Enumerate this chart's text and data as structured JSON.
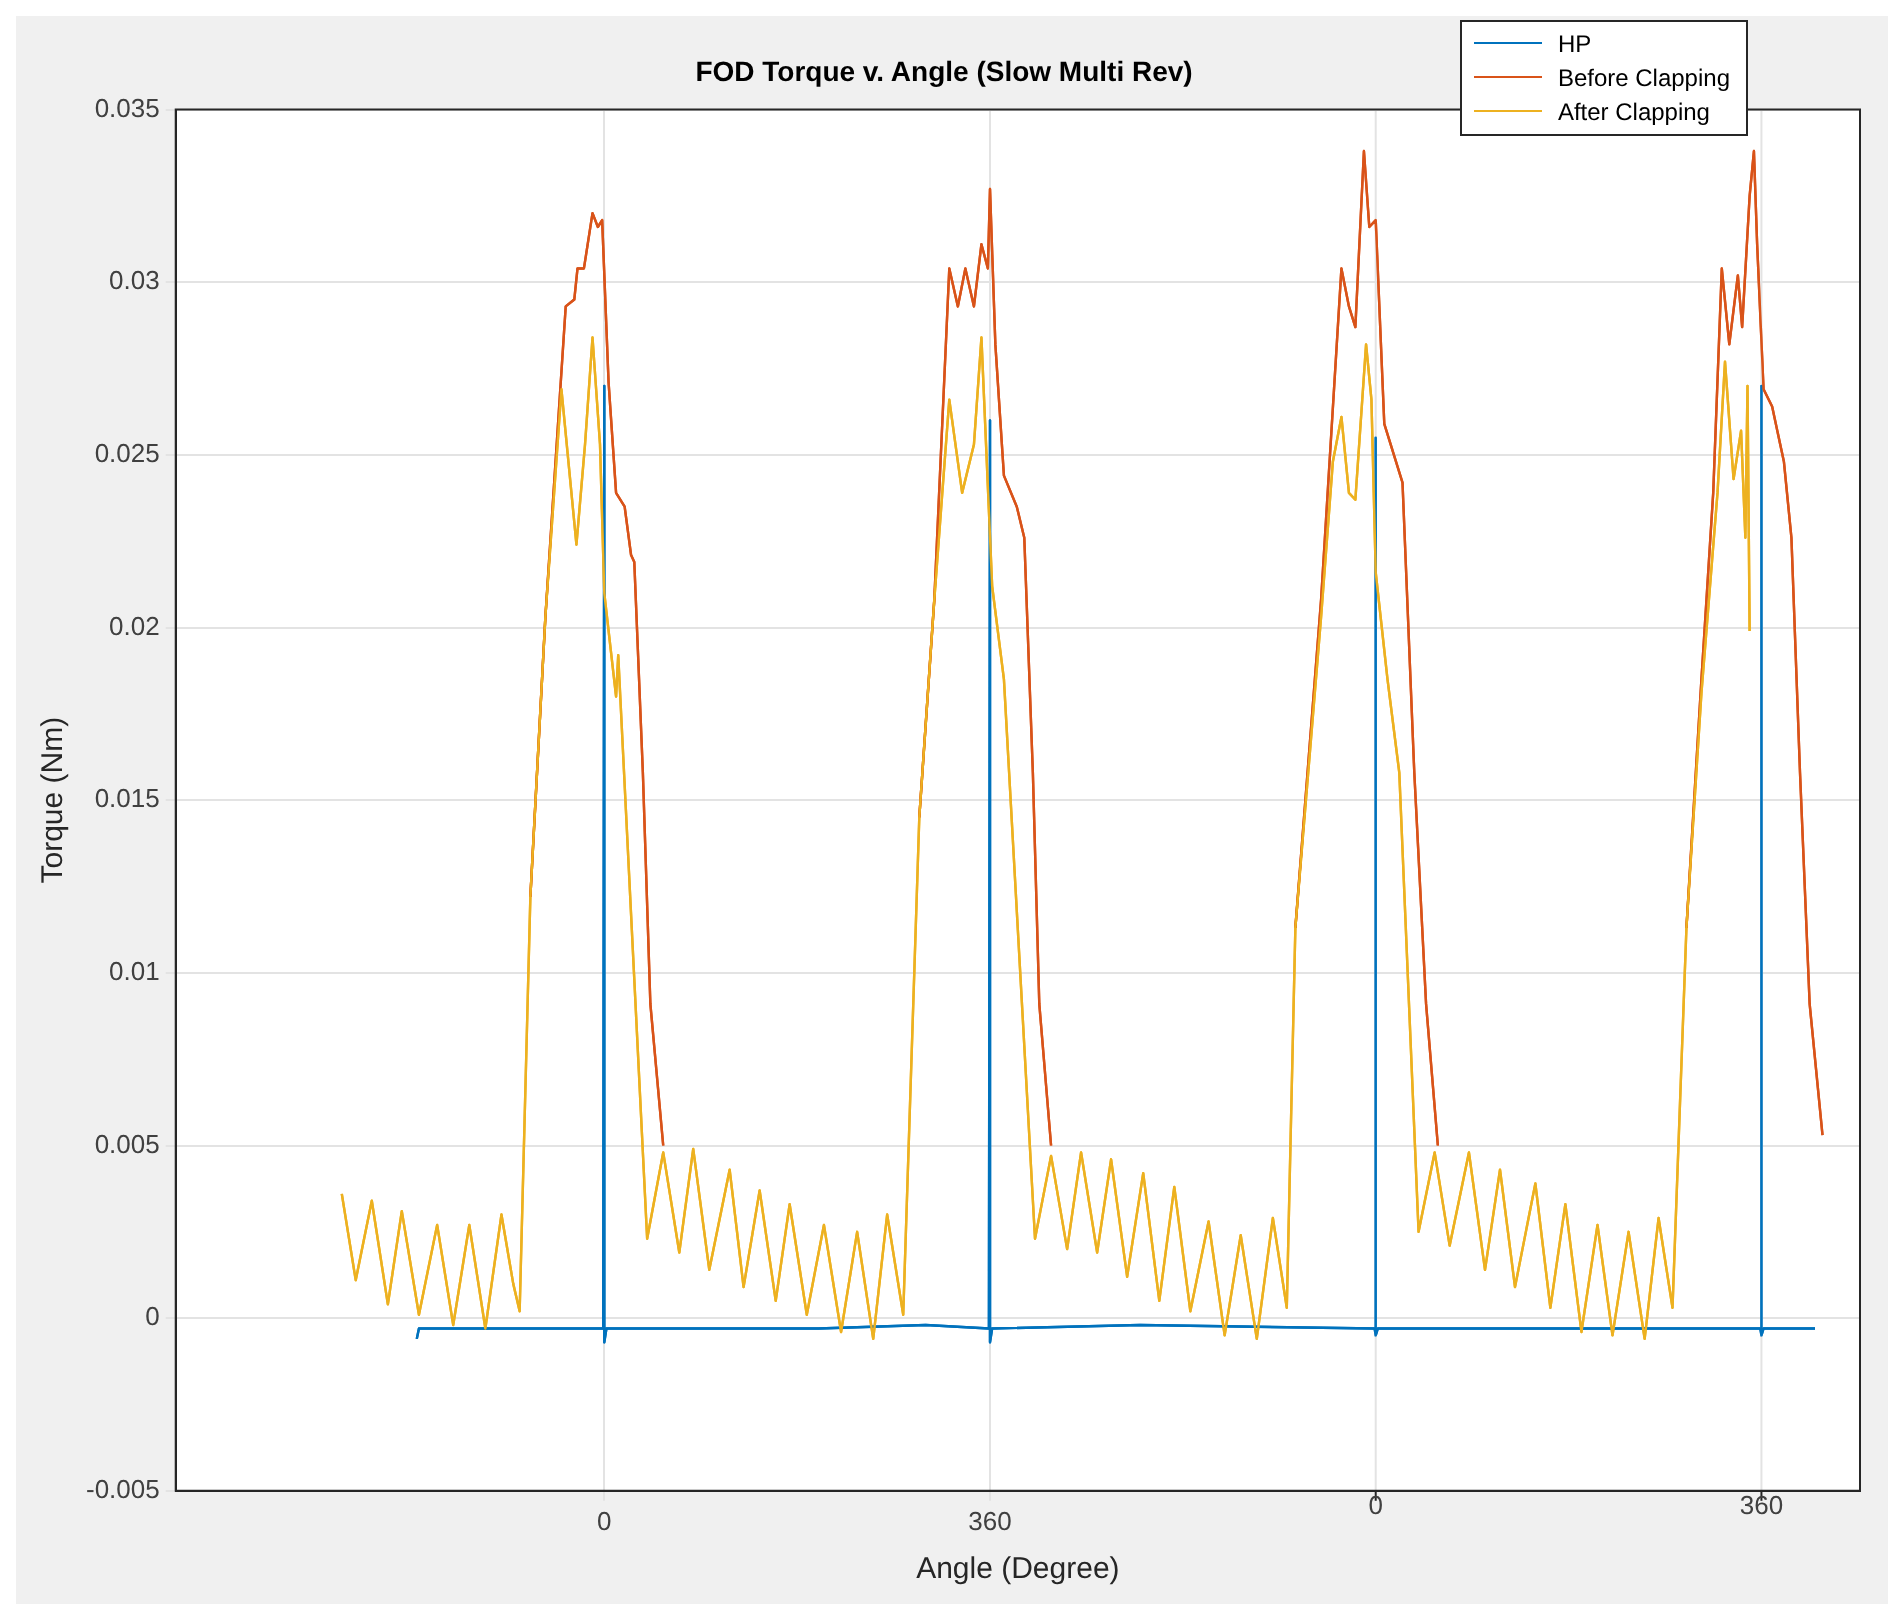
{
  "chart_data": {
    "type": "line",
    "title": "FOD Torque v. Angle (Slow Multi Rev)",
    "xlabel": "Angle (Degree)",
    "ylabel": "Torque (Nm)",
    "xlim": [
      -400,
      1172
    ],
    "xticks": [
      0,
      360
    ],
    "x2lim": [
      -1120,
      452
    ],
    "x2ticks": [
      0,
      360
    ],
    "ylim": [
      -0.005,
      0.035
    ],
    "yticks": [
      -0.005,
      0,
      0.005,
      0.01,
      0.015,
      0.02,
      0.025,
      0.03,
      0.035
    ],
    "grid": true,
    "legend": "top right",
    "marker": "none",
    "line_style": "solid",
    "series": [
      {
        "name": "HP",
        "color": "#0072bd",
        "x": [
          -175,
          -173,
          -1,
          0,
          0,
          2,
          200,
          300,
          359,
          360,
          360,
          362,
          500,
          719,
          720,
          720,
          722,
          900,
          1079,
          1080,
          1080,
          1082,
          1130
        ],
        "values": [
          -0.0006,
          -0.0003,
          -0.0003,
          0.027,
          -0.0007,
          -0.0003,
          -0.0003,
          -0.0002,
          -0.0003,
          0.026,
          -0.0007,
          -0.0003,
          -0.0002,
          -0.0003,
          0.0255,
          -0.0005,
          -0.0003,
          -0.0003,
          -0.0003,
          0.027,
          -0.0005,
          -0.0003,
          -0.0003
        ]
      },
      {
        "name": "Before Clapping",
        "color": "#d95319",
        "x": [
          -69,
          -55,
          -36,
          -28,
          -25,
          -19,
          -11,
          -6,
          -2,
          4,
          11,
          19,
          25,
          28,
          36,
          43,
          55,
          200,
          294,
          308,
          322,
          330,
          337,
          345,
          352,
          358,
          360,
          365,
          373,
          385,
          392,
          400,
          406,
          417,
          550,
          645,
          669,
          688,
          695,
          701,
          709,
          714,
          720,
          728,
          739,
          745,
          756,
          767,
          778,
          900,
          1010,
          1024,
          1035,
          1043,
          1050,
          1058,
          1062,
          1069,
          1073,
          1076,
          1082,
          1090,
          1101,
          1108,
          1116,
          1125,
          1137
        ],
        "values": [
          0.0122,
          0.0203,
          0.0293,
          0.0295,
          0.0304,
          0.0304,
          0.032,
          0.0316,
          0.0318,
          0.0271,
          0.0239,
          0.0235,
          0.0221,
          0.0219,
          0.0158,
          0.0091,
          0.005,
          null,
          0.0145,
          0.0208,
          0.0304,
          0.0293,
          0.0304,
          0.0293,
          0.0311,
          0.0304,
          0.0327,
          0.0282,
          0.0244,
          0.0235,
          0.0226,
          0.0158,
          0.0091,
          0.005,
          null,
          0.0113,
          0.0208,
          0.0304,
          0.0293,
          0.0287,
          0.0338,
          0.0316,
          0.0318,
          0.0259,
          0.0248,
          0.0242,
          0.0158,
          0.0091,
          0.005,
          null,
          0.0113,
          0.0185,
          0.0239,
          0.0304,
          0.0282,
          0.0302,
          0.0287,
          0.0325,
          0.0338,
          0.0311,
          0.0269,
          0.0264,
          0.0248,
          0.0226,
          0.0158,
          0.0091,
          0.0053
        ]
      },
      {
        "name": "After Clapping",
        "color": "#edb120",
        "x": [
          -245,
          -232,
          -217,
          -202,
          -189,
          -173,
          -156,
          -141,
          -126,
          -111,
          -96,
          -85,
          -79,
          -69,
          -55,
          -40,
          -26,
          -18,
          -11,
          -4,
          0,
          11,
          13,
          40,
          55,
          70,
          83,
          98,
          117,
          130,
          145,
          160,
          173,
          189,
          205,
          221,
          236,
          251,
          264,
          279,
          294,
          308,
          322,
          334,
          345,
          352,
          362,
          373,
          402,
          417,
          432,
          445,
          460,
          473,
          488,
          503,
          518,
          532,
          547,
          564,
          579,
          594,
          609,
          624,
          637,
          645,
          669,
          680,
          688,
          695,
          701,
          711,
          716,
          720,
          731,
          742,
          760,
          775,
          789,
          807,
          822,
          836,
          850,
          869,
          883,
          897,
          912,
          927,
          941,
          956,
          971,
          984,
          997,
          1010,
          1024,
          1039,
          1046,
          1054,
          1061,
          1065,
          1067,
          1069
        ],
        "values": [
          0.0036,
          0.0011,
          0.0034,
          0.0004,
          0.0031,
          0.0001,
          0.0027,
          -0.0002,
          0.0027,
          -0.0003,
          0.003,
          0.001,
          0.0002,
          0.0122,
          0.0203,
          0.0269,
          0.0224,
          0.0253,
          0.0284,
          0.0253,
          0.021,
          0.018,
          0.0192,
          0.0023,
          0.0048,
          0.0019,
          0.0049,
          0.0014,
          0.0043,
          0.0009,
          0.0037,
          0.0005,
          0.0033,
          0.0001,
          0.0027,
          -0.0004,
          0.0025,
          -0.0006,
          0.003,
          0.0001,
          0.0145,
          0.0208,
          0.0266,
          0.0239,
          0.0253,
          0.0284,
          0.0212,
          0.0185,
          0.0023,
          0.0047,
          0.002,
          0.0048,
          0.0019,
          0.0046,
          0.0012,
          0.0042,
          0.0005,
          0.0038,
          0.0002,
          0.0028,
          -0.0005,
          0.0024,
          -0.0006,
          0.0029,
          0.0003,
          0.0113,
          0.0203,
          0.0248,
          0.0261,
          0.0239,
          0.0237,
          0.0282,
          0.0266,
          0.0216,
          0.0185,
          0.0158,
          0.0025,
          0.0048,
          0.0021,
          0.0048,
          0.0014,
          0.0043,
          0.0009,
          0.0039,
          0.0003,
          0.0033,
          -0.0004,
          0.0027,
          -0.0005,
          0.0025,
          -0.0006,
          0.0029,
          0.0003,
          0.0113,
          0.0181,
          0.0239,
          0.0277,
          0.0243,
          0.0257,
          0.0226,
          0.027,
          0.0199
        ]
      }
    ]
  }
}
